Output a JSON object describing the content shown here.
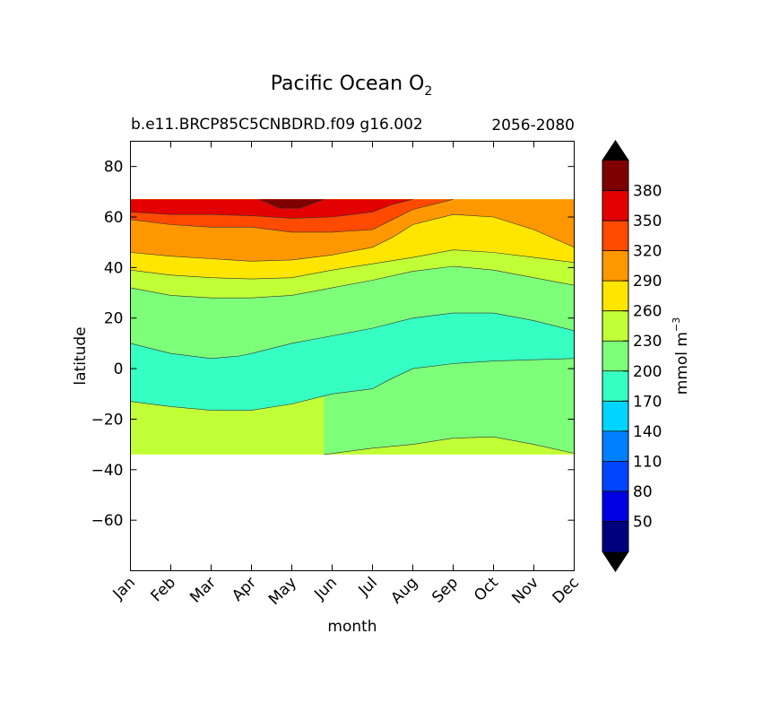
{
  "chart_data": {
    "type": "contour",
    "title": "Pacific Ocean O",
    "title_subscript": "2",
    "subtitle_left": "b.e11.BRCP85C5CNBDRD.f09 g16.002",
    "subtitle_right": "2056-2080",
    "xlabel": "month",
    "ylabel": "latitude",
    "x_categories": [
      "Jan",
      "Feb",
      "Mar",
      "Apr",
      "May",
      "Jun",
      "Jul",
      "Aug",
      "Sep",
      "Oct",
      "Nov",
      "Dec"
    ],
    "xlim": [
      1,
      12
    ],
    "ylim": [
      -80,
      90
    ],
    "y_ticks": [
      80,
      60,
      40,
      20,
      0,
      -20,
      -40,
      -60
    ],
    "y_tick_labels": [
      "80",
      "60",
      "40",
      "20",
      "0",
      "−20",
      "−40",
      "−60"
    ],
    "data_lat_range": [
      -34,
      67
    ],
    "colorbar": {
      "label": "mmol m",
      "label_superscript": "−3",
      "levels": [
        20,
        50,
        80,
        110,
        140,
        170,
        200,
        230,
        260,
        290,
        320,
        350,
        380,
        410
      ],
      "tick_labels": [
        "50",
        "80",
        "110",
        "140",
        "170",
        "200",
        "230",
        "260",
        "290",
        "320",
        "350",
        "380"
      ],
      "colors": [
        "#00007f",
        "#0000e3",
        "#0044ff",
        "#0080ff",
        "#00d4ff",
        "#35ffc2",
        "#7dff7a",
        "#c1ff36",
        "#ffe600",
        "#ff9800",
        "#ff4a00",
        "#e30000",
        "#7f0000"
      ],
      "extend": "both",
      "extend_colors": [
        "#000000",
        "#000000"
      ]
    },
    "contour_boundaries": [
      {
        "value": 230,
        "below": "#c1ff36",
        "above": "#7dff7a",
        "points": [
          [
            5.8,
            -34
          ],
          [
            7,
            -31.5
          ],
          [
            8,
            -30
          ],
          [
            9,
            -27.5
          ],
          [
            10,
            -27
          ],
          [
            11,
            -30
          ],
          [
            12,
            -33.5
          ]
        ]
      },
      {
        "value": 200,
        "below": "#7dff7a",
        "above": "#35ffc2",
        "points": [
          [
            1,
            -13
          ],
          [
            2,
            -15
          ],
          [
            3,
            -16.5
          ],
          [
            4,
            -16.5
          ],
          [
            5,
            -14
          ],
          [
            6,
            -10
          ],
          [
            7,
            -8
          ],
          [
            7.4,
            -4.5
          ],
          [
            8,
            0
          ],
          [
            9,
            2
          ],
          [
            10,
            3
          ],
          [
            11,
            3.5
          ],
          [
            12,
            4
          ]
        ]
      },
      {
        "value": 200,
        "below": "#35ffc2",
        "above": "#7dff7a",
        "points": [
          [
            1,
            10
          ],
          [
            2,
            6
          ],
          [
            3,
            4
          ],
          [
            3.7,
            5
          ],
          [
            4,
            6
          ],
          [
            5,
            10
          ],
          [
            6,
            13
          ],
          [
            7,
            16
          ],
          [
            8,
            20
          ],
          [
            9,
            22
          ],
          [
            10,
            22
          ],
          [
            11,
            19
          ],
          [
            12,
            15
          ]
        ]
      },
      {
        "value": 230,
        "below": "#7dff7a",
        "above": "#c1ff36",
        "points": [
          [
            1,
            32
          ],
          [
            2,
            29
          ],
          [
            3,
            28
          ],
          [
            4,
            28
          ],
          [
            5,
            29
          ],
          [
            6,
            32
          ],
          [
            7,
            35
          ],
          [
            8,
            38.5
          ],
          [
            9,
            40.5
          ],
          [
            10,
            39
          ],
          [
            11,
            36
          ],
          [
            12,
            33
          ]
        ]
      },
      {
        "value": 260,
        "below": "#c1ff36",
        "above": "#ffe600",
        "points": [
          [
            1,
            39
          ],
          [
            2,
            37
          ],
          [
            3,
            36
          ],
          [
            4,
            35.5
          ],
          [
            5,
            36
          ],
          [
            6,
            39
          ],
          [
            7,
            41.5
          ],
          [
            8,
            44
          ],
          [
            9,
            47
          ],
          [
            10,
            46
          ],
          [
            11,
            44
          ],
          [
            12,
            42
          ]
        ]
      },
      {
        "value": 290,
        "below": "#ffe600",
        "above": "#ff9800",
        "points": [
          [
            1,
            46
          ],
          [
            2,
            44.5
          ],
          [
            3,
            43.5
          ],
          [
            4,
            42.5
          ],
          [
            5,
            43
          ],
          [
            6,
            45
          ],
          [
            7,
            48
          ],
          [
            7.5,
            52
          ],
          [
            8,
            57
          ],
          [
            9,
            61
          ],
          [
            10,
            60
          ],
          [
            11,
            55
          ],
          [
            12,
            48
          ]
        ]
      },
      {
        "value": 320,
        "below": "#ff9800",
        "above": "#ff4a00",
        "points": [
          [
            1,
            59
          ],
          [
            2,
            57
          ],
          [
            3,
            56
          ],
          [
            4,
            56
          ],
          [
            5,
            54
          ],
          [
            6,
            54
          ],
          [
            7,
            55
          ],
          [
            7.5,
            59
          ],
          [
            8,
            63
          ],
          [
            9,
            67
          ]
        ]
      },
      {
        "value": 350,
        "below": "#ff4a00",
        "above": "#e30000",
        "points": [
          [
            1,
            62
          ],
          [
            2,
            61
          ],
          [
            3,
            61
          ],
          [
            4,
            60.5
          ],
          [
            5,
            59.5
          ],
          [
            6,
            60
          ],
          [
            7,
            62
          ],
          [
            7.5,
            65
          ],
          [
            8,
            67
          ]
        ]
      },
      {
        "value": 380,
        "below": "#e30000",
        "above": "#7f0000",
        "points": [
          [
            4.2,
            67
          ],
          [
            4.7,
            63.5
          ],
          [
            5.2,
            63.5
          ],
          [
            5.8,
            67
          ]
        ]
      }
    ]
  }
}
